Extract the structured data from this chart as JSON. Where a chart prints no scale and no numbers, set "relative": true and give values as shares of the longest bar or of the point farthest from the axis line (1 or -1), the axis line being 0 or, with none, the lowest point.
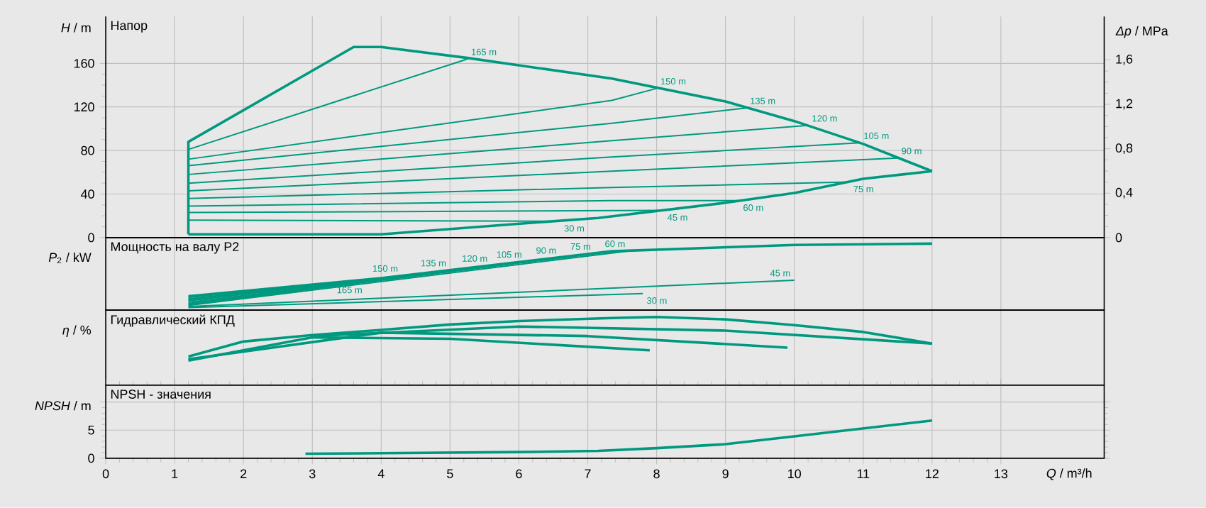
{
  "chart_data": [
    {
      "type": "line",
      "title": "Напор",
      "ylabel": "*H* / m",
      "y2label": "*Δp* / MPa",
      "xlim": [
        0,
        14.5
      ],
      "xticks": [
        0,
        1,
        2,
        3,
        4,
        5,
        6,
        7,
        8,
        9,
        10,
        11,
        12,
        13
      ],
      "ylim": [
        0,
        203
      ],
      "yticks": [
        0,
        40,
        80,
        120,
        160
      ],
      "y2lim": [
        0,
        1.99
      ],
      "y2ticks": [
        0,
        {
          "value": 0.4,
          "label": "0,4"
        },
        {
          "value": 0.8,
          "label": "0,8"
        },
        {
          "value": 1.2,
          "label": "1,2"
        },
        {
          "value": 1.6,
          "label": "1,6"
        }
      ],
      "grid": true,
      "tick_labels": "y",
      "series": [
        {
          "color": "#00997f",
          "x": [
            1.2,
            1.2,
            3.6,
            4,
            5.25,
            7.35,
            9,
            10,
            11,
            12
          ],
          "values": [
            3,
            88,
            175,
            175,
            165,
            146,
            125,
            107,
            86,
            61
          ]
        },
        {
          "color": "#00997f",
          "x": [
            1.2,
            4,
            6.05,
            7.15,
            9,
            10,
            11,
            12
          ],
          "values": [
            3,
            3,
            13,
            18,
            32,
            41,
            54,
            61
          ]
        },
        {
          "name": "165 m",
          "color": "#00997f",
          "x": [
            1.2,
            5.25
          ],
          "values": [
            81,
            164
          ]
        },
        {
          "name": "150 m",
          "color": "#00997f",
          "x": [
            1.2,
            7.35,
            8.0
          ],
          "values": [
            72,
            126,
            137
          ]
        },
        {
          "name": "135 m",
          "color": "#00997f",
          "x": [
            1.2,
            7.35,
            9.3
          ],
          "values": [
            66,
            105,
            119
          ]
        },
        {
          "name": "120 m",
          "color": "#00997f",
          "x": [
            1.2,
            7.35,
            10.2
          ],
          "values": [
            58,
            89,
            103
          ]
        },
        {
          "name": "105 m",
          "color": "#00997f",
          "x": [
            1.2,
            7.35,
            10.95
          ],
          "values": [
            50,
            74,
            87
          ]
        },
        {
          "name": "90 m",
          "color": "#00997f",
          "x": [
            1.2,
            7.35,
            11.5
          ],
          "values": [
            43,
            61,
            73
          ]
        },
        {
          "name": "75 m",
          "color": "#00997f",
          "x": [
            1.2,
            7.35,
            10.8
          ],
          "values": [
            36,
            46,
            51
          ]
        },
        {
          "name": "60 m",
          "color": "#00997f",
          "x": [
            1.2,
            7.35,
            9.2
          ],
          "values": [
            29,
            34,
            34
          ]
        },
        {
          "name": "45 m",
          "color": "#00997f",
          "x": [
            1.2,
            8.1
          ],
          "values": [
            23,
            25
          ]
        },
        {
          "name": "30 m",
          "color": "#00997f",
          "x": [
            1.2,
            6.6
          ],
          "values": [
            16,
            15
          ]
        }
      ]
    },
    {
      "type": "line",
      "title": "Мощность на валу P2",
      "ylabel": "*P*$_{2}$ / kW",
      "relative": true,
      "xlim": [
        0,
        14.5
      ],
      "xticks": [
        0,
        1,
        2,
        3,
        4,
        5,
        6,
        7,
        8,
        9,
        10,
        11,
        12,
        13
      ],
      "grid": "x",
      "tick_labels": "y",
      "series": [
        {
          "color": "#00997f",
          "x": [
            1.2,
            4,
            7.35,
            10,
            12
          ],
          "values": [
            0.21,
            0.48,
            0.885,
            0.98,
            1
          ]
        },
        {
          "name": "165 m",
          "color": "#00997f",
          "x": [
            1.2,
            3.3
          ],
          "values": [
            0.19,
            0.41
          ]
        },
        {
          "name": "150 m",
          "color": "#00997f",
          "x": [
            1.2,
            4.3
          ],
          "values": [
            0.17,
            0.52
          ]
        },
        {
          "name": "135 m",
          "color": "#00997f",
          "x": [
            1.2,
            5.0
          ],
          "values": [
            0.155,
            0.6
          ]
        },
        {
          "name": "120 m",
          "color": "#00997f",
          "x": [
            1.2,
            5.6
          ],
          "values": [
            0.14,
            0.67
          ]
        },
        {
          "name": "105 m",
          "color": "#00997f",
          "x": [
            1.2,
            6.1
          ],
          "values": [
            0.12,
            0.73
          ]
        },
        {
          "name": "90 m",
          "color": "#00997f",
          "x": [
            1.2,
            6.6
          ],
          "values": [
            0.1,
            0.79
          ]
        },
        {
          "name": "75 m",
          "color": "#00997f",
          "x": [
            1.2,
            7.1
          ],
          "values": [
            0.085,
            0.85
          ]
        },
        {
          "name": "60 m",
          "color": "#00997f",
          "x": [
            1.2,
            7.6
          ],
          "values": [
            0.07,
            0.89
          ]
        },
        {
          "name": "45 m",
          "color": "#00997f",
          "x": [
            1.2,
            10.0
          ],
          "values": [
            0.055,
            0.45
          ]
        },
        {
          "name": "30 m",
          "color": "#00997f",
          "x": [
            1.2,
            7.8
          ],
          "values": [
            0.04,
            0.25
          ]
        }
      ]
    },
    {
      "type": "line",
      "title": "Гидравлический КПД",
      "ylabel": "*η* / %",
      "relative": true,
      "xlim": [
        0,
        14.5
      ],
      "xticks": [
        0,
        1,
        2,
        3,
        4,
        5,
        6,
        7,
        8,
        9,
        10,
        11,
        12,
        13
      ],
      "grid": "x",
      "tick_labels": "y",
      "series": [
        {
          "color": "#00997f",
          "x": [
            1.2,
            2,
            3,
            4,
            5,
            6,
            7.35,
            8,
            9,
            10,
            11,
            12
          ],
          "values": [
            0.42,
            0.64,
            0.735,
            0.81,
            0.89,
            0.94,
            0.985,
            1,
            0.965,
            0.88,
            0.78,
            0.61
          ]
        },
        {
          "color": "#00997f",
          "x": [
            1.2,
            3,
            5,
            7.9
          ],
          "values": [
            0.36,
            0.7,
            0.68,
            0.51
          ]
        },
        {
          "color": "#00997f",
          "x": [
            1.2,
            4,
            7,
            9.9
          ],
          "values": [
            0.38,
            0.77,
            0.72,
            0.55
          ]
        },
        {
          "color": "#00997f",
          "x": [
            3,
            6,
            9,
            12
          ],
          "values": [
            0.72,
            0.86,
            0.8,
            0.61
          ]
        }
      ]
    },
    {
      "type": "line",
      "title": "NPSH - значения",
      "ylabel": "*NPSH* / m",
      "xlabel": "*Q* / m³/h",
      "xlim": [
        0,
        14.5
      ],
      "xticks": [
        0,
        1,
        2,
        3,
        4,
        5,
        6,
        7,
        8,
        9,
        10,
        11,
        12,
        13
      ],
      "ylim": [
        0,
        13
      ],
      "yticks": [
        0,
        5,
        {
          "value": 10,
          "label": null
        }
      ],
      "grid": true,
      "series": [
        {
          "color": "#00997f",
          "x": [
            2.9,
            4,
            6,
            7.15,
            8,
            9,
            10,
            11,
            12
          ],
          "values": [
            0.8,
            0.9,
            1.1,
            1.3,
            1.8,
            2.5,
            3.9,
            5.3,
            6.7
          ]
        }
      ]
    }
  ]
}
